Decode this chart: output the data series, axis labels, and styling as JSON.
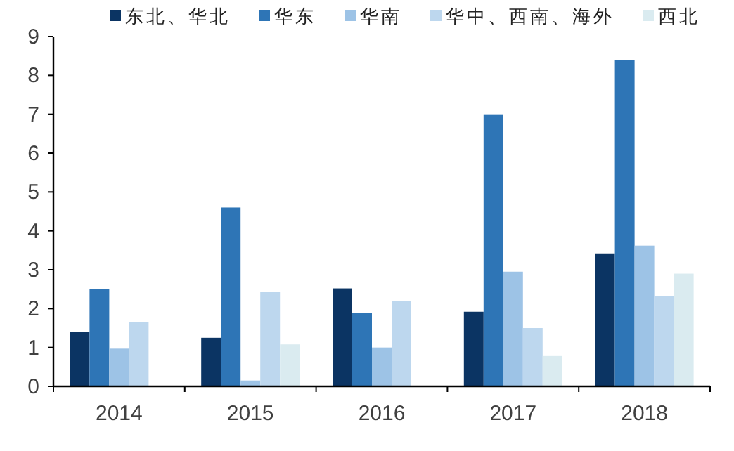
{
  "chart_data": {
    "type": "bar",
    "categories": [
      "2014",
      "2015",
      "2016",
      "2017",
      "2018"
    ],
    "series": [
      {
        "name": "东北、华北",
        "color": "#0b3463",
        "values": [
          1.4,
          1.25,
          2.52,
          1.92,
          3.42
        ]
      },
      {
        "name": "华东",
        "color": "#2e75b6",
        "values": [
          2.5,
          4.6,
          1.88,
          7.0,
          8.4
        ]
      },
      {
        "name": "华南",
        "color": "#9dc3e6",
        "values": [
          0.97,
          0.15,
          1.0,
          2.95,
          3.62
        ]
      },
      {
        "name": "华中、西南、海外",
        "color": "#bdd7ee",
        "values": [
          1.65,
          2.43,
          2.2,
          1.5,
          2.33
        ]
      },
      {
        "name": "西北",
        "color": "#daebf0",
        "values": [
          null,
          1.08,
          null,
          0.78,
          2.9
        ]
      }
    ],
    "ylim": [
      0,
      9
    ],
    "yticks": [
      0,
      1,
      2,
      3,
      4,
      5,
      6,
      7,
      8,
      9
    ],
    "legend": "top"
  }
}
